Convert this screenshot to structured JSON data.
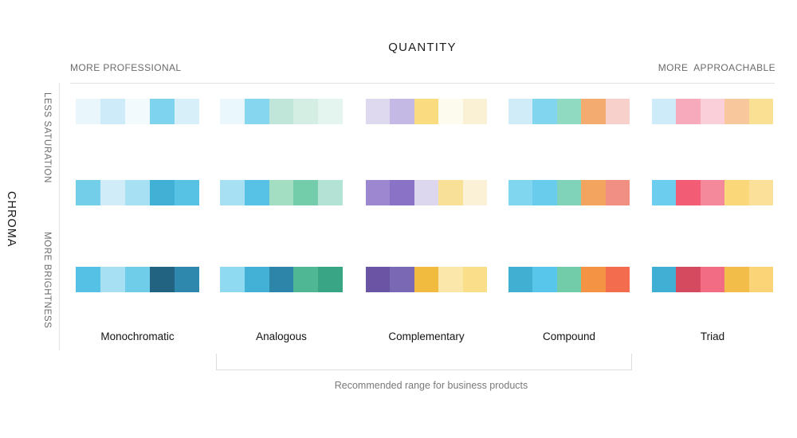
{
  "top_axis": {
    "title": "QUANTITY",
    "left_label": "MORE PROFESSIONAL",
    "right_label": "MORE  APPROACHABLE"
  },
  "left_axis": {
    "title": "CHROMA",
    "top_label": "LESS SATURATION",
    "bottom_label": "MORE BRIGHTNESS"
  },
  "columns": [
    "Monochromatic",
    "Analogous",
    "Complementary",
    "Compound",
    "Triad"
  ],
  "row_keys": [
    "less-saturation",
    "middle",
    "more-brightness"
  ],
  "palettes": {
    "grid": [
      [
        [
          "#E9F6FC",
          "#CDEBF8",
          "#F3FAFD",
          "#7ED4EE",
          "#D6EFF9"
        ],
        [
          "#EAF7FD",
          "#86D6EF",
          "#C0E6DA",
          "#D4EEE3",
          "#E4F4EE"
        ],
        [
          "#DFD9F0",
          "#C4B9E4",
          "#F9DC7F",
          "#FDFAEE",
          "#FAF0D3"
        ],
        [
          "#CFECF8",
          "#82D5EF",
          "#90DAC2",
          "#F4AB6F",
          "#F7D0CB"
        ],
        [
          "#CDEBF8",
          "#F6AABA",
          "#FACFD9",
          "#F8C79B",
          "#FAE092"
        ]
      ],
      [
        [
          "#73CEEA",
          "#D0ECF8",
          "#A8E0F3",
          "#41B0D5",
          "#58C2E5"
        ],
        [
          "#A8E0F3",
          "#57C1E6",
          "#A3DDC2",
          "#73CCAA",
          "#B3E3D4"
        ],
        [
          "#9C88D0",
          "#8873C7",
          "#DDD6EF",
          "#F8E096",
          "#FBF1D6"
        ],
        [
          "#80D6EF",
          "#69CCED",
          "#80D3B8",
          "#F3A45E",
          "#F19082"
        ],
        [
          "#6CCDEE",
          "#F25C74",
          "#F4899C",
          "#FAD87A",
          "#FAE098"
        ]
      ],
      [
        [
          "#55C1E5",
          "#A8E0F3",
          "#70CDEA",
          "#216380",
          "#2E87AC"
        ],
        [
          "#90DAF1",
          "#42B1D5",
          "#2D86AA",
          "#50B794",
          "#39A585"
        ],
        [
          "#6A55A5",
          "#7B68B5",
          "#F1BB40",
          "#FBE7AA",
          "#FADE8A"
        ],
        [
          "#41AFD1",
          "#58C5EA",
          "#72CCAA",
          "#F49343",
          "#F46C4E"
        ],
        [
          "#40AFD4",
          "#D64A60",
          "#F26C84",
          "#F2BD48",
          "#FAD477"
        ]
      ]
    ]
  },
  "footer": {
    "caption": "Recommended range for business products"
  },
  "ui_colors": {
    "divider": "#dddddd",
    "muted_text": "#6e6e6e",
    "dark_text": "#1c1c1c"
  }
}
